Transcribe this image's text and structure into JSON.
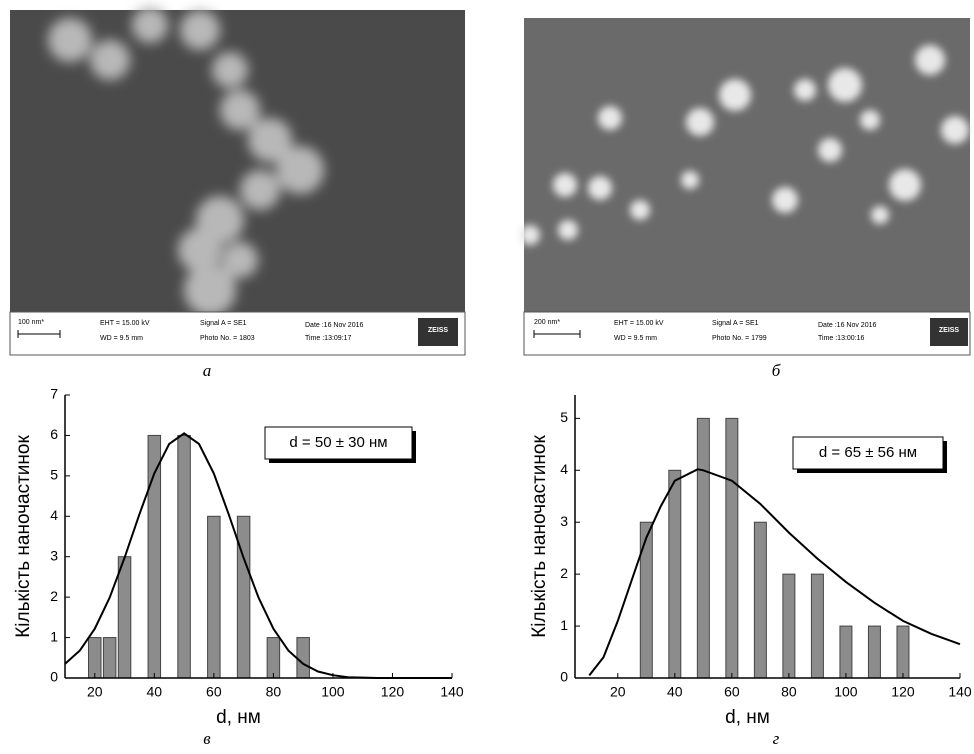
{
  "images": [
    {
      "scale": "100 nm*",
      "eht": "EHT = 15.00 kV",
      "wd": "WD = 9.5 mm",
      "signal": "Signal A = SE1",
      "photo": "Photo No. = 1803",
      "date": "Date :16 Nov 2016",
      "time": "Time :13:09:17",
      "logo": "ZEISS",
      "caption": "а"
    },
    {
      "scale": "200 nm*",
      "eht": "EHT = 15.00 kV",
      "wd": "WD = 9.5 mm",
      "signal": "Signal A = SE1",
      "photo": "Photo No. = 1799",
      "date": "Date :16 Nov 2016",
      "time": "Time :13:00:16",
      "logo": "ZEISS",
      "caption": "б"
    }
  ],
  "chart_data": [
    {
      "type": "bar",
      "caption": "в",
      "xlabel": "d, нм",
      "ylabel": "Кількість наночастинок",
      "annotation": "d = 50 ± 30 нм",
      "x": [
        20,
        25,
        30,
        40,
        50,
        60,
        70,
        80,
        90
      ],
      "values": [
        1,
        1,
        3,
        6,
        6,
        4,
        4,
        1,
        1
      ],
      "color": "#8c8c8c",
      "curve": {
        "color": "#000000",
        "x": [
          10,
          15,
          20,
          25,
          30,
          35,
          40,
          45,
          50,
          55,
          60,
          65,
          70,
          75,
          80,
          85,
          90,
          95,
          100,
          105,
          110,
          115,
          120,
          130,
          140
        ],
        "values": [
          0.35,
          0.68,
          1.22,
          1.99,
          2.97,
          4.05,
          5.06,
          5.79,
          6.05,
          5.79,
          5.06,
          4.05,
          2.97,
          1.99,
          1.22,
          0.68,
          0.35,
          0.16,
          0.07,
          0.02,
          0.01,
          0,
          0,
          0,
          0
        ]
      },
      "xlim": [
        10,
        140
      ],
      "xticks": [
        20,
        40,
        60,
        80,
        100,
        120,
        140
      ],
      "ylim": [
        0,
        7
      ],
      "yticks": [
        0,
        1,
        2,
        3,
        4,
        5,
        6,
        7
      ]
    },
    {
      "type": "bar",
      "caption": "г",
      "xlabel": "d, нм",
      "ylabel": "Кількість наночастинок",
      "annotation": "d = 65 ± 56 нм",
      "x": [
        30,
        40,
        50,
        60,
        70,
        80,
        90,
        100,
        110,
        120
      ],
      "values": [
        3,
        4,
        5,
        5,
        3,
        2,
        2,
        1,
        1,
        1
      ],
      "color": "#8c8c8c",
      "curve": {
        "color": "#000000",
        "x": [
          10,
          15,
          20,
          25,
          30,
          35,
          40,
          48,
          50,
          60,
          70,
          80,
          90,
          100,
          110,
          120,
          130,
          140
        ],
        "values": [
          0.05,
          0.4,
          1.1,
          1.9,
          2.7,
          3.3,
          3.8,
          4.02,
          4.0,
          3.8,
          3.35,
          2.8,
          2.3,
          1.85,
          1.45,
          1.1,
          0.85,
          0.65
        ]
      },
      "xlim": [
        5,
        140
      ],
      "xticks": [
        20,
        40,
        60,
        80,
        100,
        120,
        140
      ],
      "ylim": [
        0,
        5.45
      ],
      "yticks": [
        0,
        1,
        2,
        3,
        4,
        5
      ]
    }
  ]
}
